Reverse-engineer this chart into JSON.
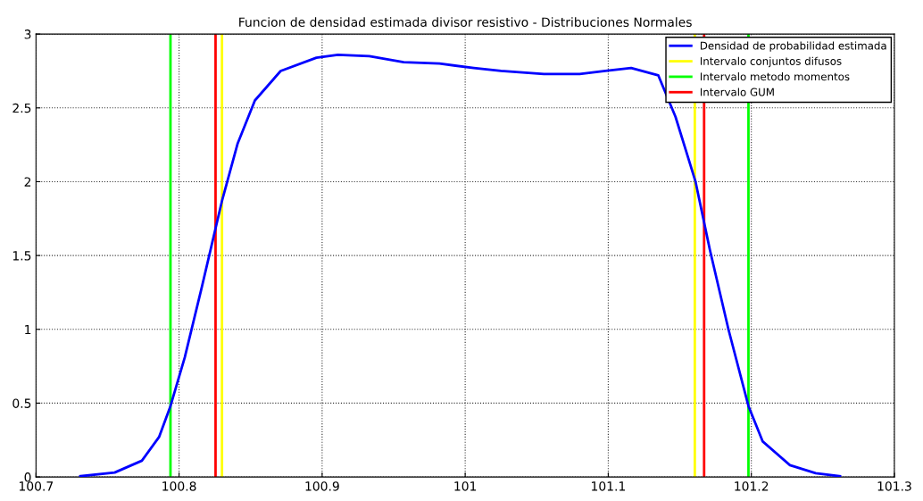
{
  "chart_data": {
    "type": "line",
    "title": "Funcion de densidad estimada divisor resistivo - Distribuciones Normales",
    "series": [
      {
        "name": "Densidad de probabilidad estimada",
        "color": "#0000ff",
        "x": [
          100.731,
          100.755,
          100.774,
          100.786,
          100.794,
          100.804,
          100.816,
          100.83,
          100.841,
          100.853,
          100.871,
          100.896,
          100.911,
          100.933,
          100.957,
          100.982,
          101.006,
          101.025,
          101.055,
          101.08,
          101.098,
          101.116,
          101.135,
          101.147,
          101.161,
          101.171,
          101.184,
          101.198,
          101.208,
          101.227,
          101.245,
          101.262
        ],
        "values": [
          0.005,
          0.03,
          0.11,
          0.27,
          0.48,
          0.81,
          1.29,
          1.87,
          2.26,
          2.55,
          2.75,
          2.84,
          2.86,
          2.85,
          2.81,
          2.8,
          2.77,
          2.75,
          2.73,
          2.73,
          2.75,
          2.77,
          2.72,
          2.44,
          2.0,
          1.54,
          1.0,
          0.48,
          0.24,
          0.08,
          0.025,
          0.005
        ]
      },
      {
        "name": "Intervalo conjuntos difusos",
        "color": "#ffff00",
        "x": [
          100.83,
          100.83
        ],
        "values": [
          0,
          3
        ]
      },
      {
        "name": "Intervalo metodo momentos",
        "color": "#00ff00",
        "x": [
          100.794,
          100.794
        ],
        "values": [
          0,
          3
        ]
      },
      {
        "name": "Intervalo GUM",
        "color": "#ff0000",
        "x": [
          100.8255,
          100.8255
        ],
        "values": [
          0,
          3
        ]
      }
    ],
    "ref_lines": [
      {
        "axis": "x",
        "value": 101.1605,
        "color": "#ffff00"
      },
      {
        "axis": "x",
        "value": 101.198,
        "color": "#00ff00"
      },
      {
        "axis": "x",
        "value": 101.167,
        "color": "#ff0000"
      }
    ],
    "xlim": [
      100.7,
      101.3
    ],
    "xticks": [
      100.7,
      100.8,
      100.9,
      101,
      101.1,
      101.2,
      101.3
    ],
    "ylim": [
      0,
      3
    ],
    "yticks": [
      0,
      0.5,
      1,
      1.5,
      2,
      2.5,
      3
    ],
    "grid": true,
    "legend": "top right"
  }
}
